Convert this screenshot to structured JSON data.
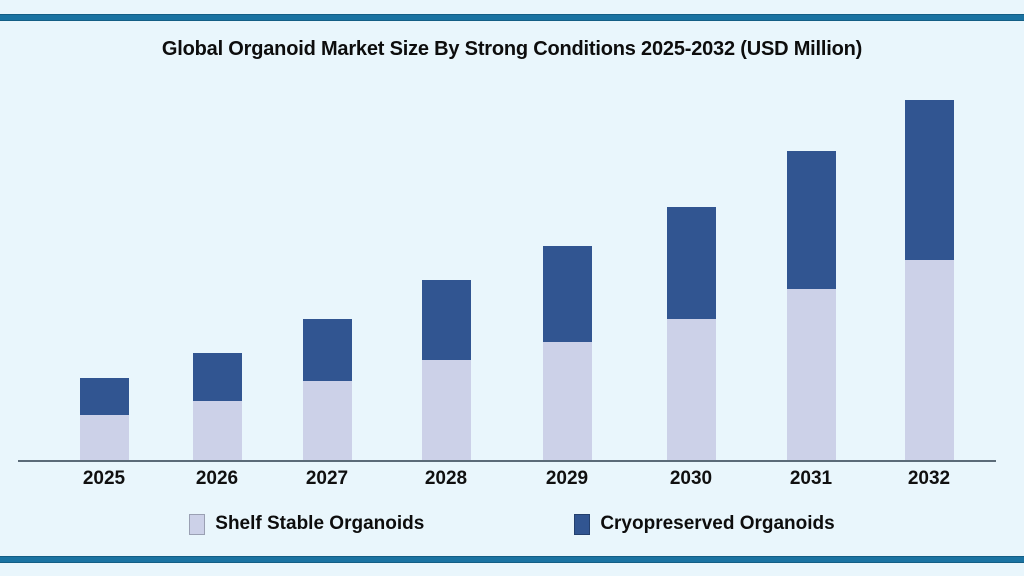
{
  "page": {
    "background_color": "#e9f6fc",
    "accent_bar_color": "#1a73a2"
  },
  "chart_data": {
    "type": "bar",
    "stacked": true,
    "title": "Global Organoid Market Size By Strong Conditions 2025-2032 (USD Million)",
    "categories": [
      "2025",
      "2026",
      "2027",
      "2028",
      "2029",
      "2030",
      "2031",
      "2032"
    ],
    "series": [
      {
        "name": "Shelf Stable Organoids",
        "color": "#ccd1e8",
        "values": [
          45,
          59,
          79,
          100,
          118,
          141,
          171,
          200
        ]
      },
      {
        "name": "Cryopreserved Organoids",
        "color": "#315591",
        "values": [
          37,
          48,
          62,
          80,
          96,
          112,
          138,
          160
        ]
      }
    ],
    "totals": [
      82,
      107,
      141,
      180,
      214,
      253,
      309,
      360
    ],
    "xlabel": "",
    "ylabel": "",
    "value_axis_visible": false,
    "value_units": "relative estimate (no numeric y-axis shown)",
    "ylim": [
      0,
      375
    ],
    "grid": false,
    "legend_position": "bottom"
  }
}
